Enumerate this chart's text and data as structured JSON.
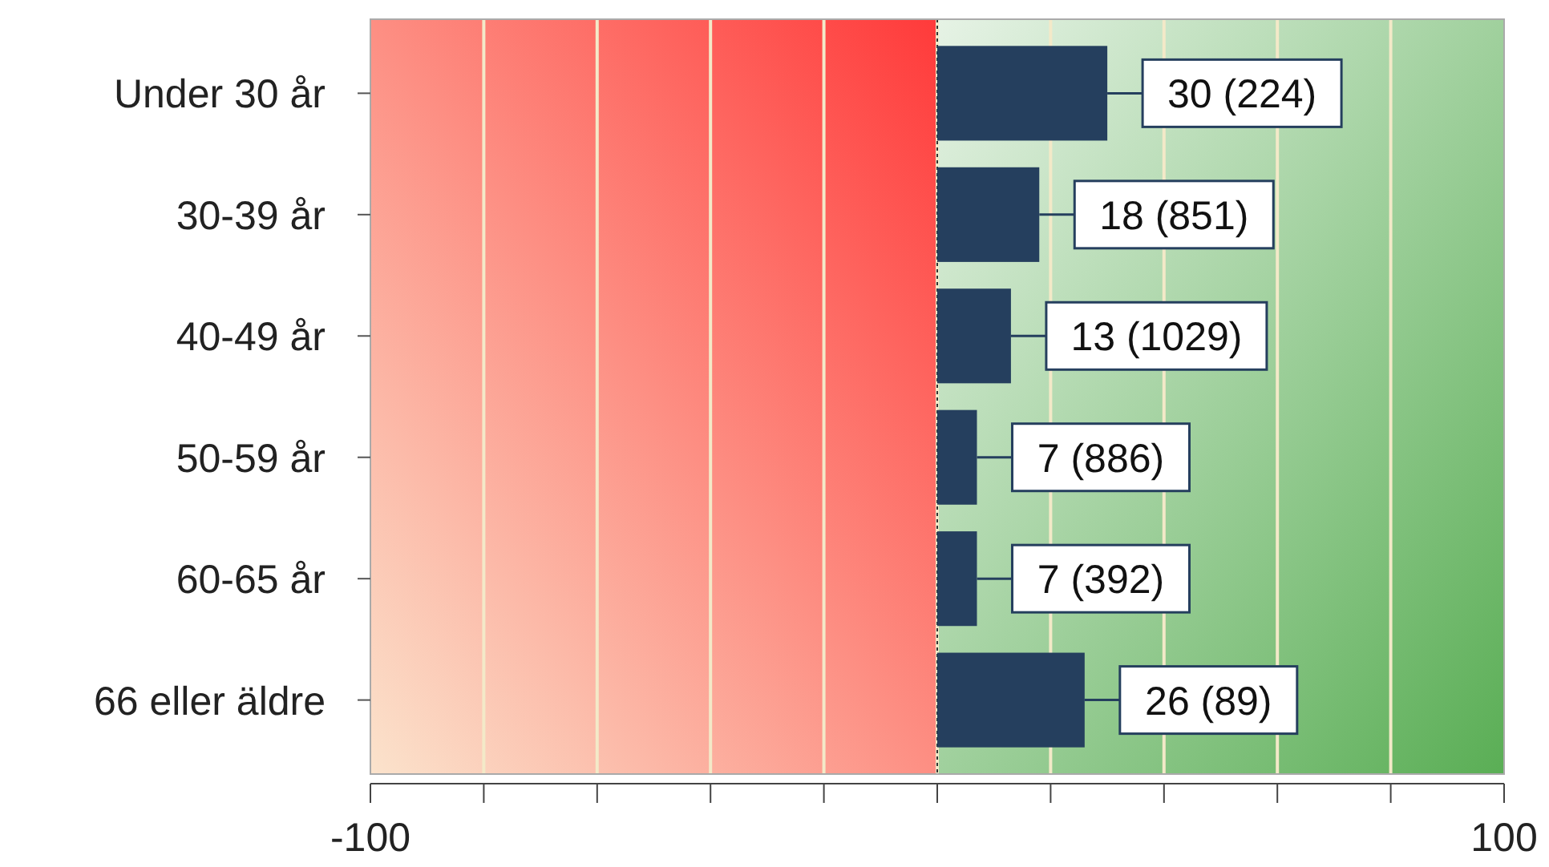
{
  "chart_data": {
    "type": "bar",
    "orientation": "horizontal",
    "categories": [
      "Under 30 år",
      "30-39 år",
      "40-49 år",
      "50-59 år",
      "60-65 år",
      "66 eller äldre"
    ],
    "values": [
      30,
      18,
      13,
      7,
      7,
      26
    ],
    "value_labels": [
      "30 (224)",
      "18 (851)",
      "13 (1029)",
      "7 (886)",
      "7 (392)",
      "26 (89)"
    ],
    "color": "#253f5e",
    "xlim": [
      -100,
      100
    ],
    "xticks": [
      -100,
      {
        "value": -80,
        "label": null
      },
      {
        "value": -60,
        "label": null
      },
      {
        "value": -40,
        "label": null
      },
      {
        "value": -20,
        "label": null
      },
      {
        "value": 0,
        "label": null
      },
      {
        "value": 20,
        "label": null
      },
      {
        "value": 40,
        "label": null
      },
      {
        "value": 60,
        "label": null
      },
      {
        "value": 80,
        "label": null
      },
      100
    ],
    "grid": "x",
    "ref_lines": [
      {
        "axis": "x",
        "value": 0,
        "color": "#333333",
        "line_style": "dotted"
      }
    ],
    "bands": [
      {
        "axis": "x",
        "from": -100,
        "to": 0,
        "color": "#ff3a3a"
      },
      {
        "axis": "x",
        "from": 0,
        "to": 100,
        "color": "#5aae55"
      }
    ]
  }
}
